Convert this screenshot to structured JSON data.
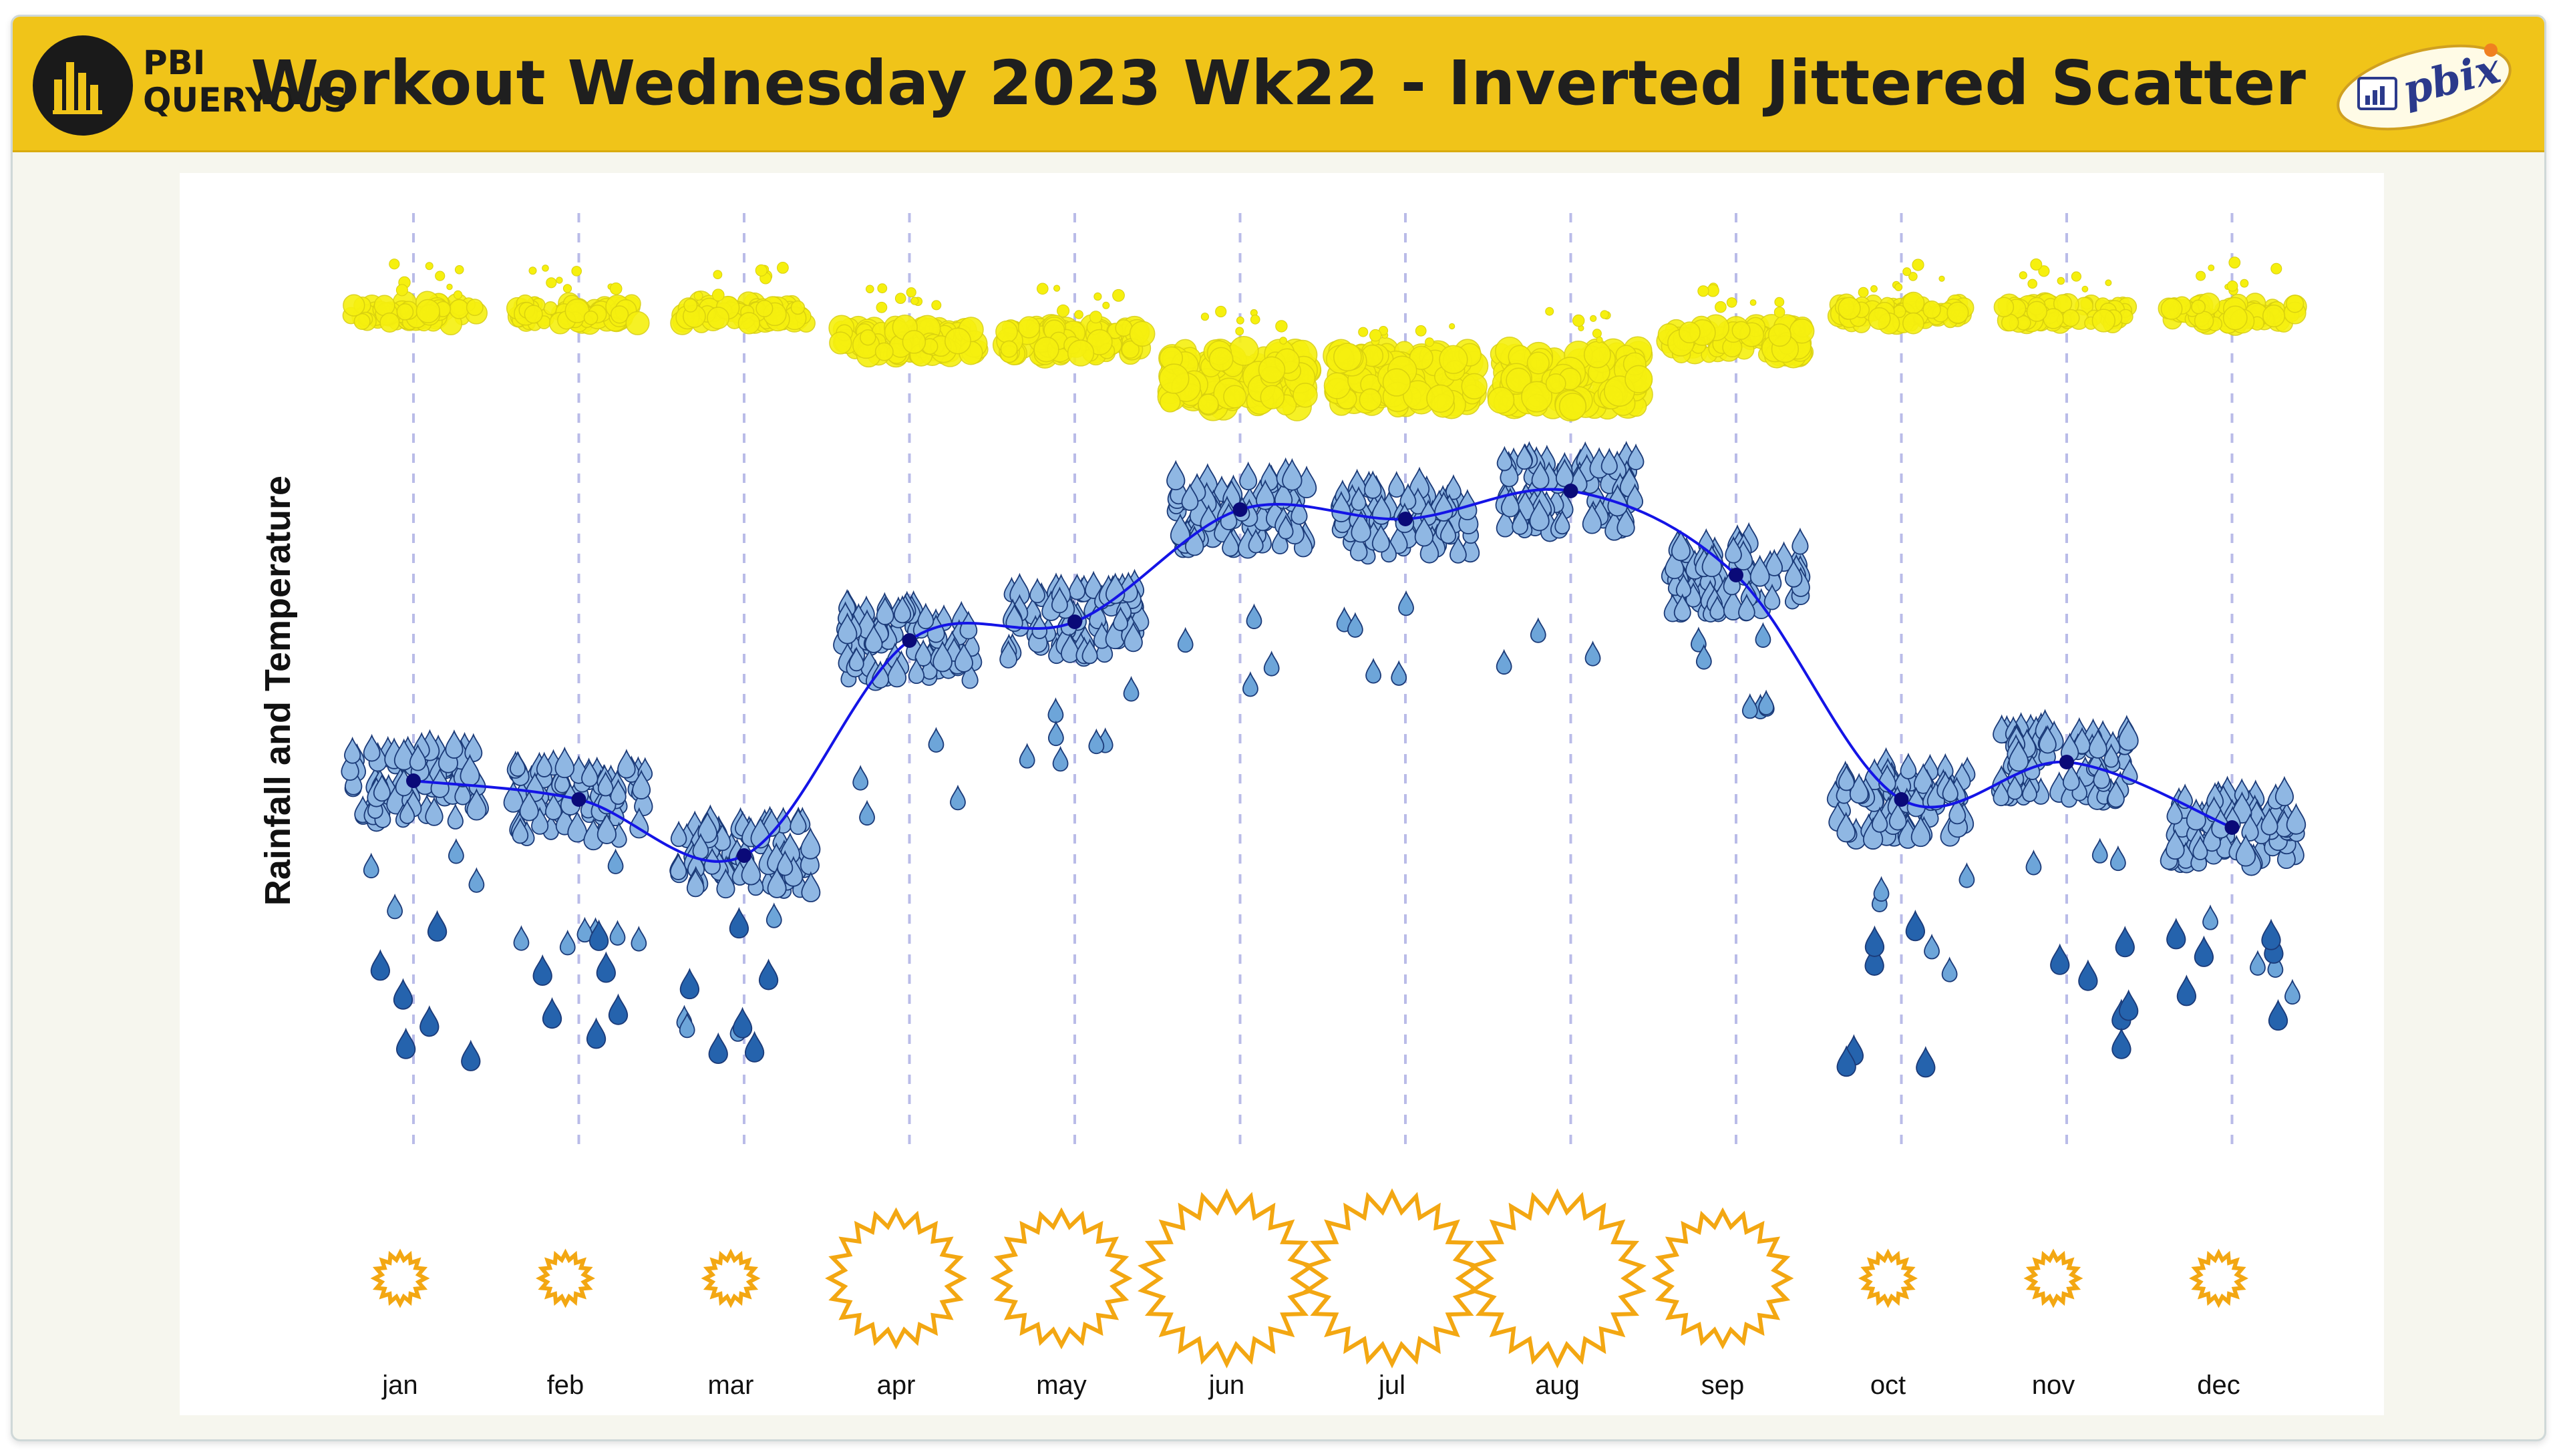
{
  "header": {
    "logo_line1": "PBI",
    "logo_line2": "QUERYOUS",
    "title": "Workout Wednesday 2023 Wk22 - Inverted Jittered Scatter",
    "badge_text": "pbix"
  },
  "colors": {
    "header_bg": "#f0c419",
    "sun": "#f3a712",
    "avg_line": "#1414e6",
    "avg_marker": "#0a0a78",
    "rain_light": "#8fb7e3",
    "rain_dark": "#2563ad",
    "rain_outline": "#1b3a78",
    "temp_bubble": "#f6f00e",
    "gridline": "#b9bbe8"
  },
  "chart_data": {
    "type": "scatter",
    "ylabel": "Rainfall and Temperature",
    "categories": [
      "jan",
      "feb",
      "mar",
      "apr",
      "may",
      "jun",
      "jul",
      "aug",
      "sep",
      "oct",
      "nov",
      "dec"
    ],
    "y_direction": "inverted",
    "grid": "vertical dashed per month",
    "series": [
      {
        "name": "",
        "marker": "raindrop",
        "avg_line": [
          0.6,
          0.62,
          0.68,
          0.45,
          0.43,
          0.31,
          0.32,
          0.29,
          0.38,
          0.62,
          0.58,
          0.65
        ]
      }
    ],
    "temperature_band": [
      0.1,
      0.1,
      0.1,
      0.13,
      0.13,
      0.17,
      0.17,
      0.17,
      0.13,
      0.1,
      0.1,
      0.1
    ],
    "sun_size": [
      1,
      1,
      1,
      2,
      2,
      3,
      3,
      3,
      2,
      1,
      1,
      1
    ]
  }
}
